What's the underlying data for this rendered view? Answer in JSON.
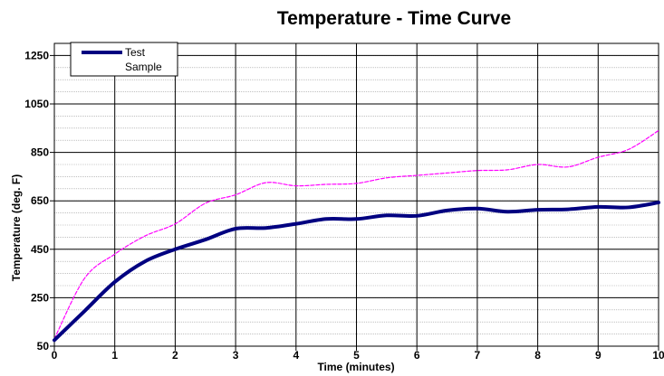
{
  "chart_data": {
    "type": "line",
    "title": "Temperature - Time Curve",
    "xlabel": "Time (minutes)",
    "ylabel": "Temperature (deg. F)",
    "xlim": [
      0,
      10
    ],
    "ylim": [
      50,
      1300
    ],
    "xticks": [
      0,
      1,
      2,
      3,
      4,
      5,
      6,
      7,
      8,
      9,
      10
    ],
    "yticks": [
      50,
      250,
      450,
      650,
      850,
      1050,
      1250
    ],
    "grid": true,
    "legend_position": "top-left",
    "legend": [
      "Test",
      "Sample"
    ],
    "series": [
      {
        "name": "Test Sample",
        "color": "#000080",
        "style": "solid-thick",
        "x": [
          0,
          0.5,
          1,
          1.5,
          2,
          2.5,
          3,
          3.5,
          4,
          4.5,
          5,
          5.5,
          6,
          6.5,
          7,
          7.5,
          8,
          8.5,
          9,
          9.5,
          10
        ],
        "y": [
          75,
          195,
          315,
          400,
          450,
          490,
          535,
          538,
          555,
          575,
          575,
          590,
          588,
          610,
          618,
          605,
          613,
          615,
          625,
          623,
          643
        ]
      },
      {
        "color": "#ff00ff",
        "style": "dashed",
        "x": [
          0,
          0.5,
          1,
          1.5,
          2,
          2.5,
          3,
          3.5,
          4,
          4.5,
          5,
          5.5,
          6,
          6.5,
          7,
          7.5,
          8,
          8.5,
          9,
          9.5,
          10
        ],
        "y": [
          80,
          330,
          430,
          505,
          555,
          640,
          675,
          725,
          712,
          718,
          722,
          745,
          755,
          765,
          775,
          778,
          800,
          790,
          830,
          862,
          940
        ]
      }
    ]
  }
}
